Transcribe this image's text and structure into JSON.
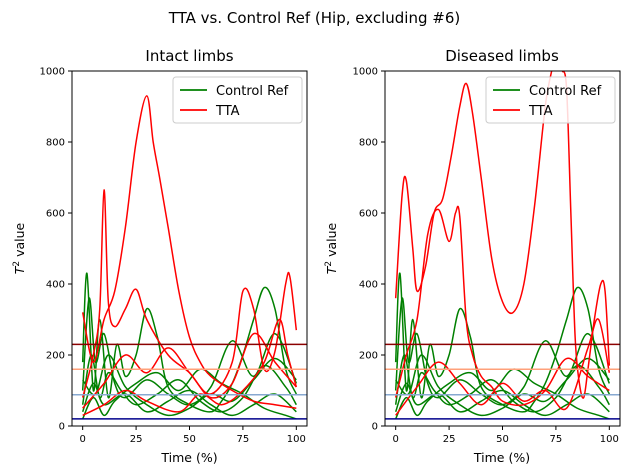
{
  "figure": {
    "suptitle": "TTA vs. Control Ref (Hip, excluding #6)"
  },
  "legend": {
    "entries": [
      {
        "label": "Control Ref",
        "color": "#008000"
      },
      {
        "label": "TTA",
        "color": "#ff0000"
      }
    ]
  },
  "chart_data": [
    {
      "type": "line",
      "title": "Intact limbs",
      "xlabel": "Time  (%)",
      "ylabel_main": "T",
      "ylabel_sup": "2",
      "ylabel_rest": " value",
      "xlim": [
        -5,
        105
      ],
      "ylim": [
        0,
        1000
      ],
      "xticks": [
        0,
        25,
        50,
        75,
        100
      ],
      "yticks": [
        0,
        200,
        400,
        600,
        800,
        1000
      ],
      "grid": false,
      "legend_position": "upper right",
      "threshold_lines": [
        {
          "y": 230,
          "color": "#8b0000"
        },
        {
          "y": 160,
          "color": "#ffa07a"
        },
        {
          "y": 88,
          "color": "#87a8d0"
        },
        {
          "y": 20,
          "color": "#00008b"
        }
      ],
      "series": [
        {
          "name": "Control Ref",
          "color": "#008000",
          "x": [
            0,
            2,
            5,
            8,
            12,
            16,
            20,
            25,
            30,
            35,
            40,
            50,
            60,
            65,
            70,
            75,
            80,
            85,
            90,
            95,
            100
          ],
          "y": [
            180,
            430,
            100,
            300,
            80,
            230,
            140,
            200,
            330,
            250,
            110,
            60,
            40,
            70,
            120,
            200,
            300,
            390,
            330,
            160,
            90
          ]
        },
        {
          "name": "",
          "color": "#008000",
          "x": [
            0,
            3,
            6,
            10,
            15,
            20,
            30,
            40,
            50,
            60,
            70,
            80,
            90,
            100
          ],
          "y": [
            100,
            360,
            180,
            260,
            120,
            80,
            130,
            90,
            60,
            110,
            240,
            140,
            260,
            120
          ]
        },
        {
          "name": "",
          "color": "#008000",
          "x": [
            0,
            4,
            8,
            12,
            18,
            25,
            35,
            45,
            55,
            65,
            75,
            85,
            95,
            100
          ],
          "y": [
            60,
            200,
            80,
            150,
            100,
            60,
            90,
            130,
            70,
            40,
            80,
            170,
            110,
            60
          ]
        },
        {
          "name": "",
          "color": "#008000",
          "x": [
            0,
            5,
            10,
            20,
            30,
            40,
            50,
            60,
            70,
            80,
            90,
            100
          ],
          "y": [
            40,
            120,
            60,
            90,
            40,
            70,
            100,
            60,
            30,
            60,
            90,
            40
          ]
        },
        {
          "name": "",
          "color": "#008000",
          "x": [
            0,
            5,
            10,
            15,
            25,
            35,
            45,
            55,
            65,
            75,
            85,
            95,
            100
          ],
          "y": [
            20,
            80,
            30,
            70,
            120,
            150,
            100,
            160,
            120,
            90,
            50,
            30,
            20
          ]
        },
        {
          "name": "",
          "color": "#008000",
          "x": [
            0,
            6,
            12,
            20,
            30,
            40,
            50,
            60,
            70,
            80,
            90,
            100
          ],
          "y": [
            130,
            90,
            200,
            110,
            60,
            30,
            50,
            90,
            70,
            130,
            190,
            130
          ]
        },
        {
          "name": "TTA",
          "color": "#ff0000",
          "x": [
            0,
            5,
            10,
            15,
            20,
            25,
            30,
            33,
            36,
            40,
            45,
            50,
            55,
            60,
            70,
            80,
            90,
            100
          ],
          "y": [
            320,
            180,
            300,
            380,
            560,
            800,
            930,
            800,
            700,
            560,
            380,
            250,
            180,
            140,
            100,
            70,
            60,
            50
          ]
        },
        {
          "name": "",
          "color": "#ff0000",
          "x": [
            0,
            5,
            8,
            10,
            12,
            15,
            20,
            25,
            30,
            40,
            50,
            60,
            70,
            80,
            90,
            100
          ],
          "y": [
            80,
            200,
            330,
            665,
            350,
            280,
            330,
            385,
            300,
            200,
            150,
            80,
            120,
            260,
            180,
            110
          ]
        },
        {
          "name": "",
          "color": "#ff0000",
          "x": [
            0,
            10,
            20,
            30,
            40,
            50,
            60,
            70,
            75,
            80,
            85,
            90,
            95,
            97,
            100
          ],
          "y": [
            50,
            120,
            200,
            150,
            220,
            150,
            90,
            180,
            380,
            330,
            160,
            210,
            400,
            420,
            270
          ]
        },
        {
          "name": "",
          "color": "#ff0000",
          "x": [
            0,
            10,
            20,
            30,
            45,
            55,
            65,
            75,
            85,
            92,
            96,
            100
          ],
          "y": [
            30,
            60,
            100,
            70,
            40,
            90,
            60,
            100,
            180,
            300,
            200,
            110
          ]
        }
      ]
    },
    {
      "type": "line",
      "title": "Diseased limbs",
      "xlabel": "Time  (%)",
      "ylabel_main": "T",
      "ylabel_sup": "2",
      "ylabel_rest": " value",
      "xlim": [
        -5,
        105
      ],
      "ylim": [
        0,
        1000
      ],
      "xticks": [
        0,
        25,
        50,
        75,
        100
      ],
      "yticks": [
        0,
        200,
        400,
        600,
        800,
        1000
      ],
      "grid": false,
      "legend_position": "upper right",
      "threshold_lines": [
        {
          "y": 230,
          "color": "#8b0000"
        },
        {
          "y": 160,
          "color": "#ffa07a"
        },
        {
          "y": 88,
          "color": "#87a8d0"
        },
        {
          "y": 20,
          "color": "#00008b"
        }
      ],
      "series": [
        {
          "name": "Control Ref",
          "color": "#008000",
          "x": [
            0,
            2,
            5,
            8,
            12,
            16,
            20,
            25,
            30,
            35,
            40,
            50,
            60,
            65,
            70,
            75,
            80,
            85,
            90,
            95,
            100
          ],
          "y": [
            180,
            430,
            100,
            300,
            80,
            230,
            140,
            200,
            330,
            250,
            110,
            60,
            40,
            70,
            120,
            200,
            300,
            390,
            330,
            160,
            90
          ]
        },
        {
          "name": "",
          "color": "#008000",
          "x": [
            0,
            3,
            6,
            10,
            15,
            20,
            30,
            40,
            50,
            60,
            70,
            80,
            90,
            100
          ],
          "y": [
            100,
            360,
            180,
            260,
            120,
            80,
            130,
            90,
            60,
            110,
            240,
            140,
            260,
            120
          ]
        },
        {
          "name": "",
          "color": "#008000",
          "x": [
            0,
            4,
            8,
            12,
            18,
            25,
            35,
            45,
            55,
            65,
            75,
            85,
            95,
            100
          ],
          "y": [
            60,
            200,
            80,
            150,
            100,
            60,
            90,
            130,
            70,
            40,
            80,
            170,
            110,
            60
          ]
        },
        {
          "name": "",
          "color": "#008000",
          "x": [
            0,
            5,
            10,
            20,
            30,
            40,
            50,
            60,
            70,
            80,
            90,
            100
          ],
          "y": [
            40,
            120,
            60,
            90,
            40,
            70,
            100,
            60,
            30,
            60,
            90,
            40
          ]
        },
        {
          "name": "",
          "color": "#008000",
          "x": [
            0,
            5,
            10,
            15,
            25,
            35,
            45,
            55,
            65,
            75,
            85,
            95,
            100
          ],
          "y": [
            20,
            80,
            30,
            70,
            120,
            150,
            100,
            160,
            120,
            90,
            50,
            30,
            20
          ]
        },
        {
          "name": "",
          "color": "#008000",
          "x": [
            0,
            6,
            12,
            20,
            30,
            40,
            50,
            60,
            70,
            80,
            90,
            100
          ],
          "y": [
            130,
            90,
            200,
            110,
            60,
            30,
            50,
            90,
            70,
            130,
            190,
            130
          ]
        },
        {
          "name": "TTA",
          "color": "#ff0000",
          "x": [
            0,
            3,
            5,
            8,
            10,
            14,
            18,
            22,
            26,
            30,
            33,
            36,
            40,
            45,
            50,
            55,
            60,
            65,
            70,
            73
          ],
          "y": [
            360,
            650,
            690,
            500,
            380,
            450,
            600,
            640,
            760,
            900,
            965,
            880,
            700,
            470,
            350,
            320,
            400,
            620,
            900,
            1000
          ]
        },
        {
          "name": "",
          "color": "#ff0000",
          "x": [
            0,
            5,
            10,
            15,
            20,
            25,
            28,
            30,
            33,
            36,
            40,
            45,
            50,
            60,
            70,
            80,
            90,
            100
          ],
          "y": [
            80,
            200,
            300,
            540,
            610,
            520,
            600,
            590,
            300,
            200,
            140,
            110,
            70,
            60,
            100,
            190,
            140,
            100
          ]
        },
        {
          "name": "",
          "color": "#ff0000",
          "x": [
            78,
            80,
            82,
            84,
            86,
            88,
            90,
            93,
            96,
            98,
            100
          ],
          "y": [
            1000,
            950,
            600,
            250,
            120,
            80,
            160,
            300,
            400,
            380,
            170
          ]
        },
        {
          "name": "",
          "color": "#ff0000",
          "x": [
            0,
            10,
            20,
            30,
            40,
            50,
            60,
            70,
            80,
            90,
            95,
            100
          ],
          "y": [
            30,
            110,
            180,
            120,
            60,
            120,
            70,
            100,
            50,
            220,
            300,
            150
          ]
        }
      ]
    }
  ]
}
